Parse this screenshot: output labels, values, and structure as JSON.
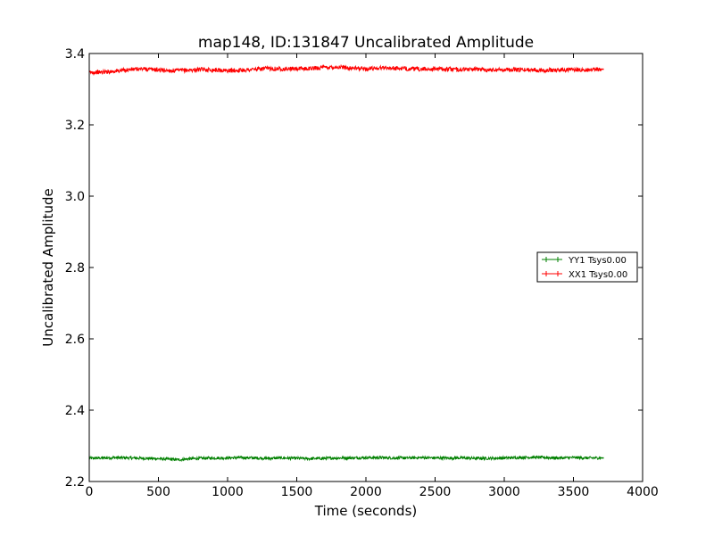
{
  "chart_data": {
    "type": "line",
    "title": "map148, ID:131847 Uncalibrated Amplitude",
    "xlabel": "Time (seconds)",
    "ylabel": "Uncalibrated Amplitude",
    "xlim": [
      0,
      4000
    ],
    "ylim": [
      2.2,
      3.4
    ],
    "x_ticks": [
      0,
      500,
      1000,
      1500,
      2000,
      2500,
      3000,
      3500,
      4000
    ],
    "x_tick_labels": [
      "0",
      "500",
      "1000",
      "1500",
      "2000",
      "2500",
      "3000",
      "3500",
      "4000"
    ],
    "y_ticks": [
      2.2,
      2.4,
      2.6,
      2.8,
      3.0,
      3.2,
      3.4
    ],
    "y_tick_labels": [
      "2.2",
      "2.4",
      "2.6",
      "2.8",
      "3.0",
      "3.2",
      "3.4"
    ],
    "grid": false,
    "legend_position": "center-right",
    "series": [
      {
        "name": "YY1 Tsys0.00",
        "color": "#008000",
        "x": [
          0,
          100,
          200,
          300,
          400,
          500,
          600,
          650,
          700,
          800,
          900,
          1000,
          1100,
          1200,
          1300,
          1400,
          1500,
          1600,
          1700,
          1800,
          1900,
          2000,
          2100,
          2200,
          2300,
          2400,
          2500,
          2600,
          2700,
          2800,
          2900,
          3000,
          3100,
          3200,
          3300,
          3400,
          3500,
          3600,
          3700
        ],
        "values": [
          2.265,
          2.266,
          2.267,
          2.266,
          2.265,
          2.264,
          2.262,
          2.261,
          2.263,
          2.265,
          2.266,
          2.266,
          2.267,
          2.266,
          2.265,
          2.266,
          2.265,
          2.264,
          2.265,
          2.266,
          2.266,
          2.267,
          2.267,
          2.266,
          2.266,
          2.267,
          2.266,
          2.266,
          2.266,
          2.265,
          2.265,
          2.266,
          2.267,
          2.268,
          2.267,
          2.266,
          2.267,
          2.266,
          2.266
        ],
        "noise": 0.004
      },
      {
        "name": "XX1 Tsys0.00",
        "color": "#ff0000",
        "x": [
          0,
          100,
          200,
          300,
          400,
          500,
          600,
          700,
          800,
          900,
          1000,
          1100,
          1200,
          1300,
          1400,
          1500,
          1600,
          1700,
          1800,
          1900,
          2000,
          2100,
          2200,
          2300,
          2400,
          2500,
          2600,
          2700,
          2800,
          2900,
          3000,
          3100,
          3200,
          3300,
          3400,
          3500,
          3600,
          3700
        ],
        "values": [
          3.347,
          3.348,
          3.351,
          3.355,
          3.357,
          3.354,
          3.352,
          3.353,
          3.355,
          3.354,
          3.352,
          3.353,
          3.356,
          3.358,
          3.357,
          3.357,
          3.358,
          3.361,
          3.362,
          3.359,
          3.357,
          3.36,
          3.359,
          3.357,
          3.356,
          3.357,
          3.356,
          3.355,
          3.356,
          3.354,
          3.355,
          3.354,
          3.355,
          3.353,
          3.354,
          3.355,
          3.354,
          3.356
        ],
        "noise": 0.006
      }
    ]
  }
}
